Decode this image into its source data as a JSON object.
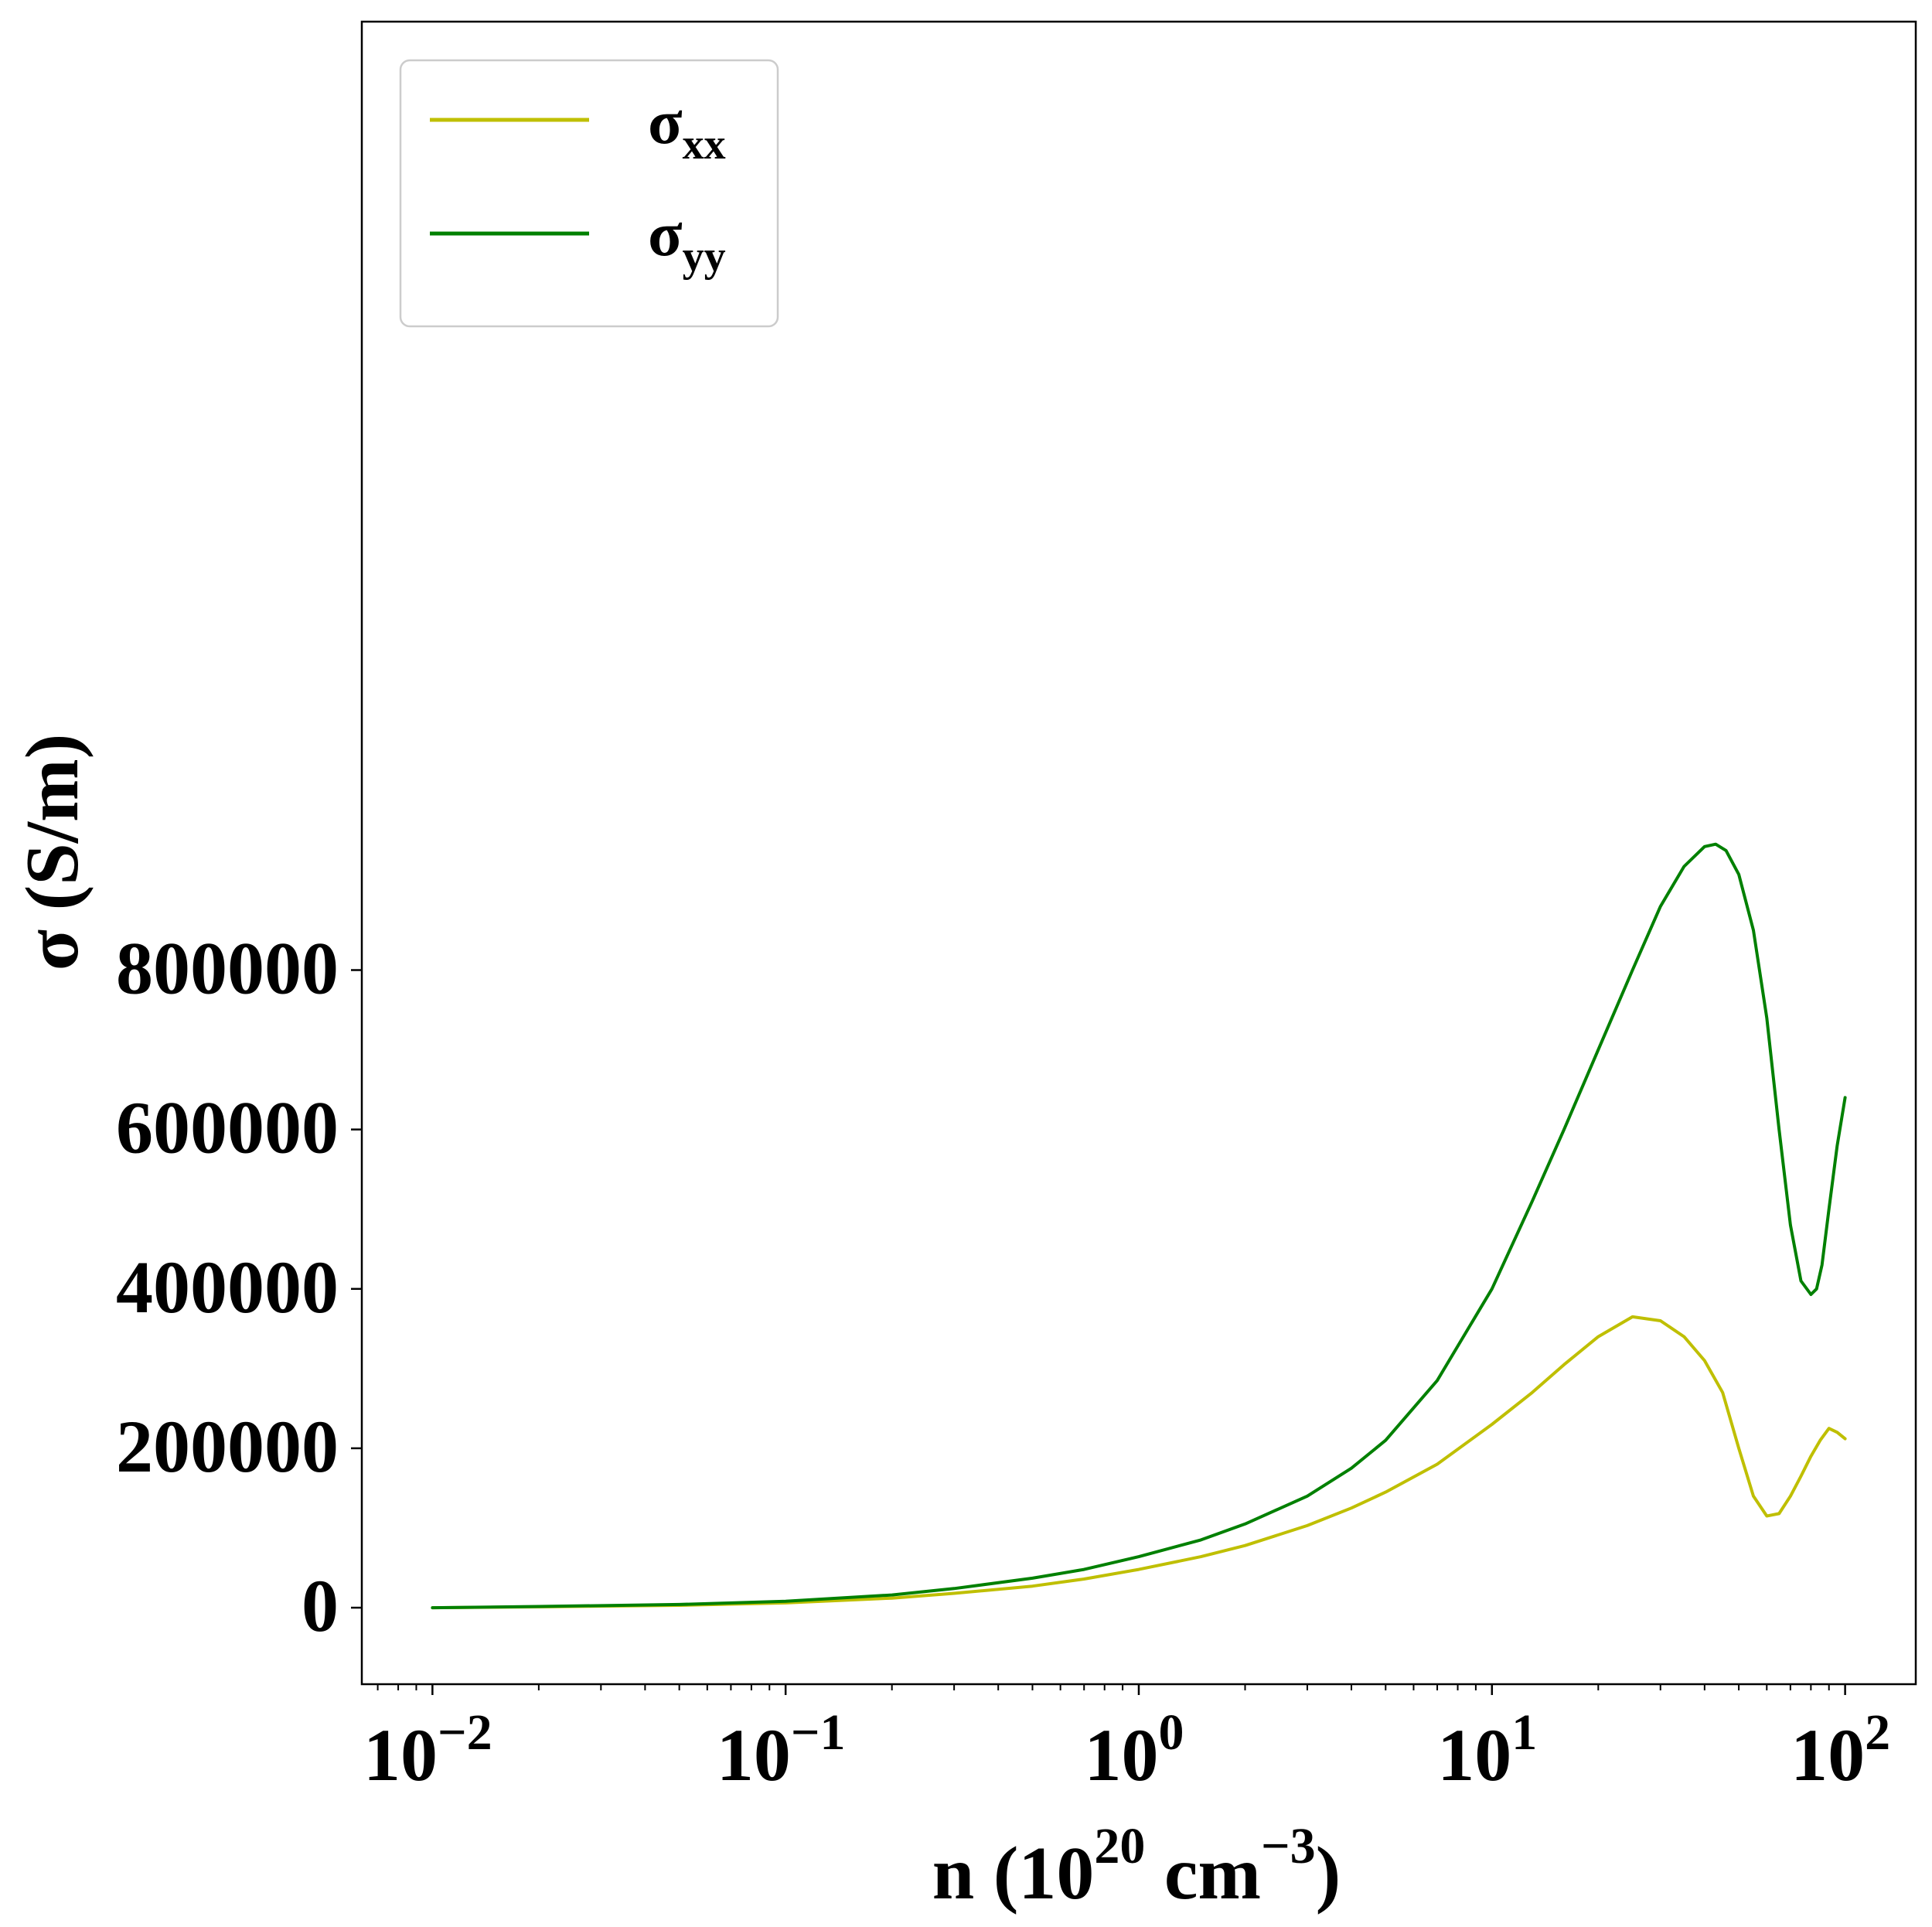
{
  "chart_data": {
    "type": "line",
    "xscale": "log",
    "xlim": [
      0.00631,
      158.5
    ],
    "ylim": [
      -96000,
      1990000
    ],
    "x_ticks": [
      {
        "value": 0.01,
        "base": "10",
        "exp": "−2"
      },
      {
        "value": 0.1,
        "base": "10",
        "exp": "−1"
      },
      {
        "value": 1,
        "base": "10",
        "exp": "0"
      },
      {
        "value": 10,
        "base": "10",
        "exp": "1"
      },
      {
        "value": 100,
        "base": "10",
        "exp": "2"
      }
    ],
    "y_ticks": [
      {
        "value": 0,
        "label": "0"
      },
      {
        "value": 200000,
        "label": "200000"
      },
      {
        "value": 400000,
        "label": "400000"
      },
      {
        "value": 600000,
        "label": "600000"
      },
      {
        "value": 800000,
        "label": "800000"
      }
    ],
    "xlabel": {
      "pre": "n (10",
      "sup1": "20",
      "mid": " cm",
      "sup2": "−3",
      "post": ")"
    },
    "ylabel": "σ (S/m)",
    "legend": {
      "location": "upper left"
    },
    "series": [
      {
        "name": "xx",
        "legend_base": "σ",
        "legend_sub": "xx",
        "color": "#bfbf00",
        "x": [
          0.01,
          0.02,
          0.05,
          0.1,
          0.2,
          0.3,
          0.5,
          0.7,
          1.0,
          1.5,
          2.0,
          3.0,
          4.0,
          5.0,
          7.0,
          10.0,
          13.0,
          16.0,
          20.0,
          25.0,
          30.0,
          35.0,
          40.0,
          45.0,
          50.0,
          55.0,
          60.0,
          65.0,
          70.0,
          75.0,
          80.0,
          85.0,
          90.0,
          95.0,
          100.0
        ],
        "y": [
          0,
          1000,
          3000,
          6000,
          12000,
          18000,
          27000,
          36000,
          48000,
          64000,
          78000,
          103000,
          125000,
          145000,
          180000,
          230000,
          270000,
          305000,
          340000,
          365000,
          360000,
          340000,
          310000,
          270000,
          200000,
          140000,
          115000,
          118000,
          140000,
          165000,
          190000,
          210000,
          225000,
          220000,
          212000
        ]
      },
      {
        "name": "yy",
        "legend_base": "σ",
        "legend_sub": "yy",
        "color": "#008000",
        "x": [
          0.01,
          0.02,
          0.05,
          0.1,
          0.2,
          0.3,
          0.5,
          0.7,
          1.0,
          1.5,
          2.0,
          3.0,
          4.0,
          5.0,
          7.0,
          10.0,
          13.0,
          16.0,
          20.0,
          25.0,
          30.0,
          35.0,
          40.0,
          43.0,
          46.0,
          50.0,
          55.0,
          60.0,
          65.0,
          70.0,
          75.0,
          80.0,
          83.0,
          86.0,
          90.0,
          95.0,
          100.0
        ],
        "y": [
          0,
          1500,
          4000,
          8000,
          16000,
          24000,
          37000,
          48000,
          64000,
          85000,
          105000,
          140000,
          175000,
          210000,
          285000,
          400000,
          510000,
          600000,
          700000,
          800000,
          880000,
          930000,
          955000,
          958000,
          950000,
          920000,
          850000,
          740000,
          600000,
          480000,
          410000,
          393000,
          400000,
          430000,
          500000,
          580000,
          640000
        ]
      }
    ]
  }
}
